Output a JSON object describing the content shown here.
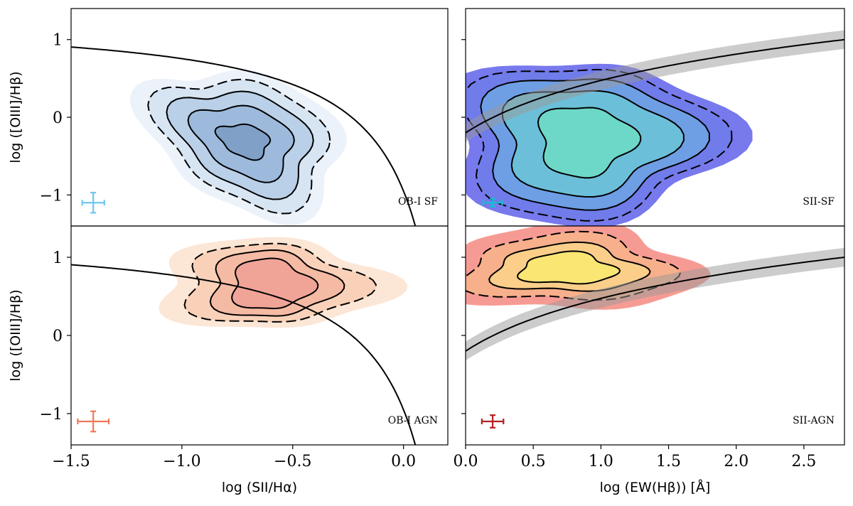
{
  "chart_data": [
    {
      "id": "ob1-sf",
      "type": "contour",
      "label": "OB-I SF",
      "xlim": [
        -1.5,
        0.2
      ],
      "ylim": [
        -1.4,
        1.4
      ],
      "yticks": [
        -1,
        0,
        1
      ],
      "ytick_labels": [
        "−1",
        "0",
        "1"
      ],
      "xticks": [],
      "xtick_labels": [],
      "ylabel": "log ([OIII]/Hβ)",
      "curve": {
        "kind": "kewley",
        "a": 0.72,
        "b": 0.32,
        "c": 1.3
      },
      "errorbar": {
        "x": -1.4,
        "y": -1.1,
        "xerr": 0.05,
        "yerr": 0.13,
        "color": "#6ec6f0"
      },
      "contours": {
        "center": [
          -0.72,
          -0.3
        ],
        "rx": [
          0.11,
          0.21,
          0.29,
          0.36,
          0.43
        ],
        "ry": [
          0.22,
          0.47,
          0.66,
          0.82,
          0.95
        ],
        "tilt": -0.15
      },
      "colors": [
        "#7b9bc4",
        "#98b6d9",
        "#b5cde6",
        "#d3e2f1",
        "#e9f0f8"
      ]
    },
    {
      "id": "sii-sf",
      "type": "contour",
      "label": "SII-SF",
      "xlim": [
        0.0,
        2.8
      ],
      "ylim": [
        -1.4,
        1.4
      ],
      "yticks": [
        -1,
        0,
        1
      ],
      "ytick_labels": [
        "",
        "",
        ""
      ],
      "xticks": [],
      "xtick_labels": [],
      "curve": {
        "kind": "log",
        "a": 0.7,
        "b": 0.5,
        "band": 0.12
      },
      "errorbar": {
        "x": 0.2,
        "y": -1.1,
        "xerr": 0.07,
        "yerr": 0.05,
        "color": "#17becf"
      },
      "contours": {
        "center": [
          0.88,
          -0.3
        ],
        "rx": [
          0.35,
          0.62,
          0.78,
          0.92,
          1.05
        ],
        "ry": [
          0.45,
          0.68,
          0.84,
          0.97,
          1.05
        ],
        "tilt": 0.0
      },
      "colors": [
        "#6fdcc6",
        "#6cc4d6",
        "#6fa6e4",
        "#6d7de8",
        "#5f62ea"
      ]
    },
    {
      "id": "ob1-agn",
      "type": "contour",
      "label": "OB-I AGN",
      "xlim": [
        -1.5,
        0.2
      ],
      "ylim": [
        -1.4,
        1.4
      ],
      "yticks": [
        -1,
        0,
        1
      ],
      "ytick_labels": [
        "−1",
        "0",
        "1"
      ],
      "xticks": [
        -1.5,
        -1.0,
        -0.5,
        0.0
      ],
      "xtick_labels": [
        "−1.5",
        "−1.0",
        "−0.5",
        "0.0"
      ],
      "ylabel": "log ([OIII]/Hβ)",
      "xlabel": "log (SII/Hα)",
      "curve": {
        "kind": "kewley",
        "a": 0.72,
        "b": 0.32,
        "c": 1.3
      },
      "errorbar": {
        "x": -1.4,
        "y": -1.1,
        "xerr": 0.07,
        "yerr": 0.13,
        "color": "#f0785a"
      },
      "contours": {
        "center": [
          -0.6,
          0.65
        ],
        "rx": [
          0.18,
          0.28,
          0.4,
          0.52
        ],
        "ry": [
          0.32,
          0.42,
          0.5,
          0.58
        ],
        "tilt": 0.0
      },
      "colors": [
        "#eea096",
        "#f4b6a0",
        "#f8cdb4",
        "#fbe2cf"
      ]
    },
    {
      "id": "sii-agn",
      "type": "contour",
      "label": "SII-AGN",
      "xlim": [
        0.0,
        2.8
      ],
      "ylim": [
        -1.4,
        1.4
      ],
      "yticks": [
        -1,
        0,
        1
      ],
      "ytick_labels": [
        "",
        "",
        ""
      ],
      "xticks": [
        0.0,
        0.5,
        1.0,
        1.5,
        2.0,
        2.5
      ],
      "xtick_labels": [
        "0.0",
        "0.5",
        "1.0",
        "1.5",
        "2.0",
        "2.5"
      ],
      "xlabel": "log (EW(Hβ)) [Å]",
      "curve": {
        "kind": "log",
        "a": 0.7,
        "b": 0.5,
        "band": 0.12
      },
      "errorbar": {
        "x": 0.2,
        "y": -1.1,
        "xerr": 0.08,
        "yerr": 0.08,
        "color": "#b22222"
      },
      "contours": {
        "center": [
          0.75,
          0.85
        ],
        "rx": [
          0.35,
          0.55,
          0.75,
          0.95
        ],
        "ry": [
          0.2,
          0.3,
          0.42,
          0.55
        ],
        "tilt": 0.0
      },
      "colors": [
        "#f8ea6e",
        "#fbd58a",
        "#f7b48a",
        "#f58a80"
      ]
    }
  ]
}
